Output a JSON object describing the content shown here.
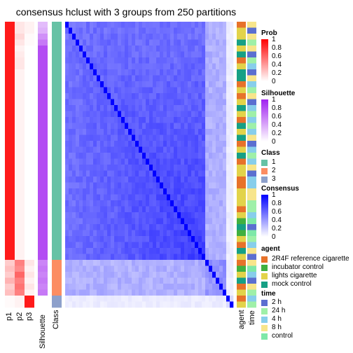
{
  "title": "consensus hclust with 3 groups from 250 partitions",
  "colors": {
    "prob_low": "#ffffff",
    "prob_high": "#ff0000",
    "silhouette_low": "#ffffff",
    "silhouette_high": "#a020f0",
    "consensus_low": "#ffffff",
    "consensus_high": "#0000ff"
  },
  "column_labels": [
    "p1",
    "p2",
    "p3",
    "Silhouette",
    "Class",
    "agent",
    "time"
  ],
  "legends": {
    "prob": {
      "title": "Prob",
      "ticks": [
        "1",
        "0.8",
        "0.6",
        "0.4",
        "0.2",
        "0"
      ]
    },
    "silhouette": {
      "title": "Silhouette",
      "ticks": [
        "1",
        "0.8",
        "0.6",
        "0.4",
        "0.2",
        "0"
      ]
    },
    "class": {
      "title": "Class",
      "items": [
        {
          "label": "1",
          "color": "#66c2a5"
        },
        {
          "label": "2",
          "color": "#fc8d62"
        },
        {
          "label": "3",
          "color": "#8da0cb"
        }
      ]
    },
    "consensus": {
      "title": "Consensus",
      "ticks": [
        "1",
        "0.8",
        "0.6",
        "0.4",
        "0.2",
        "0"
      ]
    },
    "agent": {
      "title": "agent",
      "items": [
        {
          "label": "2R4F reference cigarette",
          "color": "#e7722a"
        },
        {
          "label": "incubator control",
          "color": "#41b040"
        },
        {
          "label": "lights cigarette",
          "color": "#e2d34a"
        },
        {
          "label": "mock control",
          "color": "#16a085"
        }
      ]
    },
    "time": {
      "title": "time",
      "items": [
        {
          "label": "2 h",
          "color": "#5b6fd0"
        },
        {
          "label": "24 h",
          "color": "#9ff0a8"
        },
        {
          "label": "4 h",
          "color": "#87ceeb"
        },
        {
          "label": "8 h",
          "color": "#f7e58b"
        },
        {
          "label": "control",
          "color": "#7ee8a8"
        }
      ]
    }
  },
  "chart_data": {
    "type": "heatmap",
    "title": "consensus hclust with 3 groups from 250 partitions",
    "n_samples": 48,
    "class_sizes": {
      "1": 40,
      "2": 6,
      "3": 2
    },
    "row_order_classes": [
      1,
      1,
      1,
      1,
      1,
      1,
      1,
      1,
      1,
      1,
      1,
      1,
      1,
      1,
      1,
      1,
      1,
      1,
      1,
      1,
      1,
      1,
      1,
      1,
      1,
      1,
      1,
      1,
      1,
      1,
      1,
      1,
      1,
      1,
      1,
      1,
      1,
      1,
      1,
      1,
      2,
      2,
      2,
      2,
      2,
      2,
      3,
      3
    ],
    "p1": [
      0.9,
      0.9,
      0.9,
      0.9,
      0.9,
      0.9,
      0.9,
      0.9,
      0.9,
      0.9,
      0.9,
      0.9,
      0.9,
      0.9,
      0.9,
      0.9,
      0.9,
      0.9,
      0.9,
      0.9,
      0.9,
      0.9,
      0.9,
      0.9,
      0.9,
      0.9,
      0.9,
      0.9,
      0.9,
      0.9,
      0.9,
      0.9,
      0.9,
      0.9,
      0.9,
      0.9,
      0.9,
      0.9,
      0.9,
      0.9,
      0.2,
      0.25,
      0.2,
      0.3,
      0.2,
      0.25,
      0.02,
      0.02
    ],
    "p2": [
      0.1,
      0.1,
      0.15,
      0.1,
      0.05,
      0.08,
      0.1,
      0.1,
      0.05,
      0.05,
      0.05,
      0.05,
      0.05,
      0.05,
      0.05,
      0.05,
      0.05,
      0.05,
      0.05,
      0.05,
      0.05,
      0.05,
      0.05,
      0.05,
      0.05,
      0.05,
      0.05,
      0.05,
      0.05,
      0.05,
      0.05,
      0.05,
      0.05,
      0.05,
      0.05,
      0.05,
      0.05,
      0.05,
      0.05,
      0.05,
      0.5,
      0.45,
      0.6,
      0.5,
      0.55,
      0.5,
      0.05,
      0.05
    ],
    "p3": [
      0.05,
      0.05,
      0.02,
      0.02,
      0,
      0,
      0,
      0,
      0,
      0,
      0,
      0,
      0,
      0,
      0,
      0,
      0,
      0,
      0,
      0,
      0,
      0,
      0,
      0,
      0,
      0,
      0,
      0,
      0,
      0,
      0,
      0,
      0,
      0,
      0,
      0,
      0,
      0,
      0,
      0,
      0.1,
      0.05,
      0.1,
      0.05,
      0.1,
      0.05,
      0.9,
      0.9
    ],
    "silhouette": [
      0.3,
      0.35,
      0.5,
      0.6,
      0.8,
      0.8,
      0.8,
      0.8,
      0.8,
      0.8,
      0.8,
      0.8,
      0.8,
      0.8,
      0.8,
      0.8,
      0.8,
      0.8,
      0.8,
      0.8,
      0.8,
      0.8,
      0.8,
      0.8,
      0.8,
      0.8,
      0.8,
      0.8,
      0.8,
      0.8,
      0.8,
      0.8,
      0.8,
      0.8,
      0.8,
      0.8,
      0.8,
      0.8,
      0.8,
      0.8,
      0.55,
      0.6,
      0.55,
      0.6,
      0.55,
      0.6,
      0.0,
      0.0
    ],
    "agent": [
      "2R4F reference cigarette",
      "lights cigarette",
      "lights cigarette",
      "mock control",
      "lights cigarette",
      "mock control",
      "2R4F reference cigarette",
      "lights cigarette",
      "mock control",
      "mock control",
      "2R4F reference cigarette",
      "lights cigarette",
      "2R4F reference cigarette",
      "lights cigarette",
      "mock control",
      "lights cigarette",
      "2R4F reference cigarette",
      "mock control",
      "lights cigarette",
      "mock control",
      "2R4F reference cigarette",
      "lights cigarette",
      "mock control",
      "2R4F reference cigarette",
      "lights cigarette",
      "lights cigarette",
      "2R4F reference cigarette",
      "2R4F reference cigarette",
      "lights cigarette",
      "lights cigarette",
      "lights cigarette",
      "2R4F reference cigarette",
      "lights cigarette",
      "incubator control",
      "mock control",
      "incubator control",
      "lights cigarette",
      "2R4F reference cigarette",
      "mock control",
      "lights cigarette",
      "2R4F reference cigarette",
      "incubator control",
      "lights cigarette",
      "mock control",
      "2R4F reference cigarette",
      "lights cigarette",
      "2R4F reference cigarette",
      "lights cigarette"
    ],
    "time": [
      "8 h",
      "2 h",
      "8 h",
      "24 h",
      "8 h",
      "2 h",
      "24 h",
      "4 h",
      "2 h",
      "8 h",
      "4 h",
      "24 h",
      "8 h",
      "2 h",
      "4 h",
      "24 h",
      "4 h",
      "24 h",
      "4 h",
      "8 h",
      "2 h",
      "4 h",
      "24 h",
      "4 h",
      "8 h",
      "2 h",
      "4 h",
      "4 h",
      "8 h",
      "8 h",
      "24 h",
      "24 h",
      "4 h",
      "control",
      "2 h",
      "control",
      "24 h",
      "4 h",
      "8 h",
      "2 h",
      "8 h",
      "control",
      "4 h",
      "2 h",
      "8 h",
      "24 h",
      "4 h",
      "24 h"
    ]
  }
}
